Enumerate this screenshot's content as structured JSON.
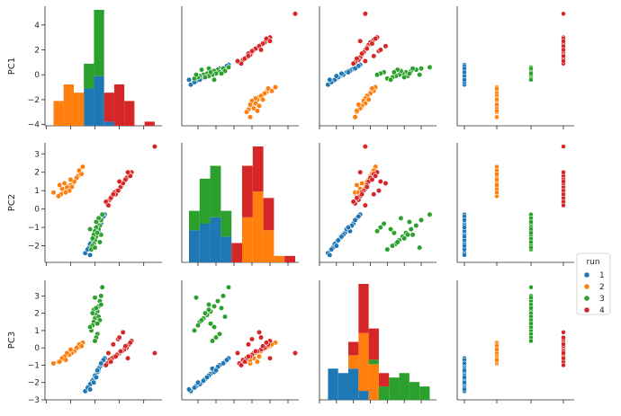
{
  "chart_data": {
    "type": "pairplot",
    "variables": [
      "PC1",
      "PC2",
      "PC3"
    ],
    "hue": "run",
    "legend": {
      "title": "run",
      "placement": "right",
      "entries": [
        {
          "label": "1",
          "color": "#1f77b4"
        },
        {
          "label": "2",
          "color": "#ff7f0e"
        },
        {
          "label": "3",
          "color": "#2ca02c"
        },
        {
          "label": "4",
          "color": "#d62728"
        }
      ]
    },
    "axes": {
      "PC1": {
        "lim": [
          -4.1,
          5.5
        ],
        "ticks": [
          -4,
          -2,
          0,
          2,
          4
        ]
      },
      "PC2": {
        "lim": [
          -2.9,
          3.6
        ],
        "ticks": [
          -2,
          -1,
          0,
          1,
          2,
          3
        ]
      },
      "PC3": {
        "lim": [
          -3.0,
          3.9
        ],
        "ticks": [
          -3,
          -2,
          -1,
          0,
          1,
          2,
          3
        ]
      }
    },
    "series": [
      {
        "name": "1",
        "color": "#1f77b4",
        "points": [
          [
            0.8,
            -0.3,
            -0.6
          ],
          [
            0.5,
            -0.8,
            -1.0
          ],
          [
            0.3,
            -1.0,
            -1.3
          ],
          [
            0.1,
            -1.3,
            -1.5
          ],
          [
            -0.1,
            -1.6,
            -1.8
          ],
          [
            -0.3,
            -1.8,
            -2.0
          ],
          [
            -0.5,
            -2.1,
            -2.2
          ],
          [
            -0.8,
            -2.4,
            -2.5
          ],
          [
            0.6,
            -0.5,
            -0.8
          ],
          [
            0.4,
            -0.9,
            -1.1
          ],
          [
            0.2,
            -1.1,
            -1.4
          ],
          [
            0.0,
            -1.4,
            -1.6
          ],
          [
            -0.2,
            -1.7,
            -1.9
          ],
          [
            -0.4,
            -1.9,
            -2.1
          ],
          [
            -0.6,
            -2.2,
            -2.3
          ],
          [
            0.7,
            -0.4,
            -0.7
          ],
          [
            0.3,
            -1.2,
            -1.2
          ],
          [
            0.1,
            -1.5,
            -1.7
          ],
          [
            -0.1,
            -2.0,
            -2.0
          ],
          [
            -0.4,
            -2.5,
            -2.4
          ],
          [
            0.5,
            -0.6,
            -0.9
          ],
          [
            0.2,
            -1.0,
            -1.3
          ]
        ]
      },
      {
        "name": "2",
        "color": "#ff7f0e",
        "points": [
          [
            -1.0,
            2.3,
            0.3
          ],
          [
            -1.2,
            2.0,
            0.1
          ],
          [
            -1.4,
            1.8,
            0.0
          ],
          [
            -1.6,
            1.6,
            -0.1
          ],
          [
            -1.8,
            1.4,
            -0.2
          ],
          [
            -2.0,
            1.3,
            -0.3
          ],
          [
            -2.2,
            1.1,
            -0.4
          ],
          [
            -2.4,
            1.0,
            -0.5
          ],
          [
            -2.6,
            0.9,
            -0.6
          ],
          [
            -2.8,
            0.8,
            -0.7
          ],
          [
            -3.0,
            0.7,
            -0.8
          ],
          [
            -3.4,
            0.9,
            -0.9
          ],
          [
            -1.3,
            2.1,
            0.2
          ],
          [
            -1.5,
            1.7,
            0.0
          ],
          [
            -1.7,
            1.5,
            -0.2
          ],
          [
            -1.9,
            1.2,
            -0.3
          ],
          [
            -2.1,
            1.0,
            -0.4
          ],
          [
            -2.3,
            1.2,
            -0.3
          ],
          [
            -2.5,
            1.4,
            -0.5
          ],
          [
            -2.7,
            1.1,
            -0.6
          ],
          [
            -2.9,
            1.3,
            -0.8
          ],
          [
            -1.1,
            1.9,
            0.1
          ],
          [
            -2.0,
            1.6,
            -0.1
          ],
          [
            -2.4,
            0.9,
            -0.7
          ]
        ]
      },
      {
        "name": "3",
        "color": "#2ca02c",
        "points": [
          [
            0.6,
            -0.3,
            3.5
          ],
          [
            0.5,
            -0.6,
            3.0
          ],
          [
            0.4,
            -0.9,
            2.7
          ],
          [
            0.3,
            -1.1,
            2.4
          ],
          [
            0.2,
            -1.3,
            2.1
          ],
          [
            0.1,
            -1.5,
            1.9
          ],
          [
            0.0,
            -1.7,
            1.7
          ],
          [
            -0.1,
            -1.9,
            1.5
          ],
          [
            -0.2,
            -2.0,
            1.3
          ],
          [
            -0.3,
            -2.2,
            1.0
          ],
          [
            0.2,
            -0.8,
            0.8
          ],
          [
            0.1,
            -1.0,
            0.6
          ],
          [
            0.0,
            -1.2,
            0.4
          ],
          [
            -0.1,
            -1.4,
            2.2
          ],
          [
            -0.2,
            -1.6,
            2.0
          ],
          [
            0.3,
            -0.5,
            1.8
          ],
          [
            0.4,
            -1.8,
            1.6
          ],
          [
            0.5,
            -1.4,
            2.5
          ],
          [
            -0.4,
            -1.1,
            1.2
          ],
          [
            0.0,
            -2.1,
            2.9
          ],
          [
            0.2,
            -1.3,
            1.4
          ],
          [
            0.1,
            -0.7,
            2.3
          ]
        ]
      },
      {
        "name": "4",
        "color": "#d62728",
        "points": [
          [
            4.9,
            3.4,
            -0.3
          ],
          [
            3.0,
            2.0,
            0.4
          ],
          [
            2.8,
            1.9,
            0.2
          ],
          [
            2.6,
            1.7,
            0.0
          ],
          [
            2.4,
            1.5,
            -0.1
          ],
          [
            2.2,
            1.3,
            -0.2
          ],
          [
            2.0,
            1.1,
            -0.3
          ],
          [
            1.8,
            1.0,
            -0.4
          ],
          [
            1.6,
            0.9,
            -0.5
          ],
          [
            1.4,
            0.7,
            -0.6
          ],
          [
            1.2,
            0.5,
            -0.7
          ],
          [
            1.0,
            0.3,
            -0.9
          ],
          [
            2.9,
            1.8,
            0.3
          ],
          [
            2.5,
            1.6,
            0.1
          ],
          [
            2.1,
            1.2,
            -0.2
          ],
          [
            1.7,
            0.8,
            -0.5
          ],
          [
            1.3,
            0.6,
            -0.8
          ],
          [
            0.9,
            0.4,
            -1.0
          ],
          [
            2.3,
            1.4,
            0.9
          ],
          [
            1.9,
            1.0,
            0.5
          ],
          [
            1.5,
            0.8,
            0.2
          ],
          [
            2.7,
            2.0,
            -0.6
          ],
          [
            2.0,
            1.5,
            0.6
          ],
          [
            1.1,
            0.2,
            -0.3
          ]
        ]
      }
    ]
  }
}
